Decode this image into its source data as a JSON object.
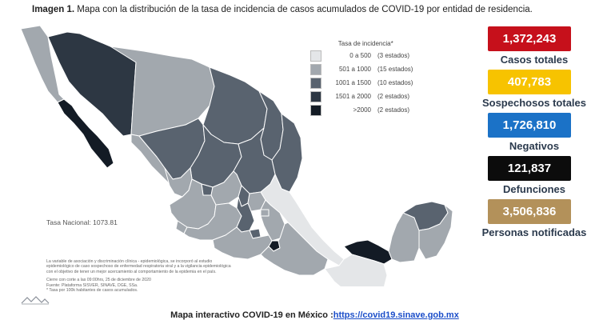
{
  "header": {
    "bold": "Imagen 1.",
    "text": " Mapa con la distribución de la tasa de incidencia de casos acumulados de COVID-19 por entidad de residencia."
  },
  "legend": {
    "title": "Tasa de incidencia*",
    "items": [
      {
        "range": "0 a 500",
        "count": "(3 estados)",
        "color": "#e4e6e8"
      },
      {
        "range": "501 a 1000",
        "count": "(15 estados)",
        "color": "#a2a8ae"
      },
      {
        "range": "1001 a 1500",
        "count": "(10 estados)",
        "color": "#59636f"
      },
      {
        "range": "1501 a 2000",
        "count": "(2 estados)",
        "color": "#2d3743"
      },
      {
        "range": ">2000",
        "count": "(2 estados)",
        "color": "#131b25"
      }
    ]
  },
  "tasa_nacional": "Tasa Nacional: 1073.81",
  "notes": {
    "line1": "La variable de asociación y discriminación clínica - epidemiológica, se incorporó al estudio",
    "line2": "epidemiológico de caso sospechoso de enfermedad respiratoria viral y a la vigilancia epidemiológica",
    "line3": "con el objetivo de tener un mejor acercamiento al comportamiento de la epidemia en el país.",
    "line4": "Cierre con corte a las 09:00hrs, 25 de diciembre de 2020",
    "line5": "Fuente: Plataforma SISVER, SINAVE, DGE, SSa.",
    "line6": "* Tasa por 100k habitantes de casos acumulados."
  },
  "stats": [
    {
      "value": "1,372,243",
      "label": "Casos totales",
      "color": "#c6101b"
    },
    {
      "value": "407,783",
      "label": "Sospechosos totales",
      "color": "#f7c300"
    },
    {
      "value": "1,726,810",
      "label": "Negativos",
      "color": "#1b72c7"
    },
    {
      "value": "121,837",
      "label": "Defunciones",
      "color": "#0c0c0c"
    },
    {
      "value": "3,506,836",
      "label": "Personas notificadas",
      "color": "#b3915a"
    }
  ],
  "footer": {
    "text": "Mapa interactivo COVID-19 en México :",
    "link": "https://covid19.sinave.gob.mx"
  }
}
